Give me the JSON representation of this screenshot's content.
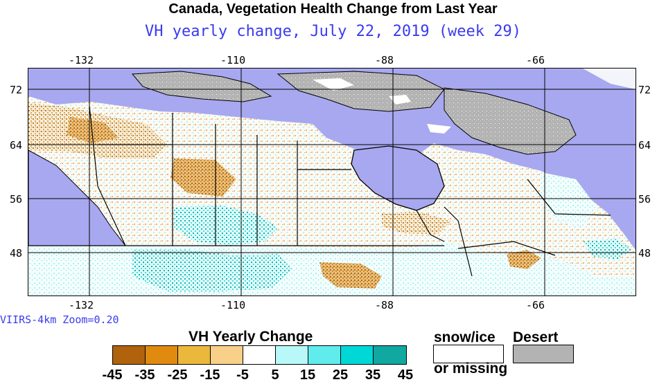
{
  "header": {
    "title": "Canada, Vegetation Health Change from Last Year",
    "subtitle": "VH yearly change, July 22, 2019 (week 29)"
  },
  "map": {
    "lon_ticks": [
      "-132",
      "-110",
      "-88",
      "-66"
    ],
    "lat_ticks": [
      "72",
      "64",
      "56",
      "48"
    ],
    "water_color": "#a8a8f0",
    "land_color": "#f3f3fb",
    "grid_color": "#000000"
  },
  "source_label": "VIIRS-4km Zoom=0.20",
  "legend": {
    "title": "VH Yearly Change",
    "colors": [
      "#b0620c",
      "#e08a10",
      "#ebb83c",
      "#f8d08a",
      "#ffffff",
      "#b8f8f8",
      "#60ecec",
      "#00d8d8",
      "#10a8a0"
    ],
    "ticks": [
      "-45",
      "-35",
      "-25",
      "-15",
      "-5",
      "5",
      "15",
      "25",
      "35",
      "45"
    ],
    "snow_label_top": "snow/ice",
    "snow_label_bottom": "or missing",
    "snow_color": "#ffffff",
    "desert_label": "Desert",
    "desert_color": "#b3b3b3"
  }
}
